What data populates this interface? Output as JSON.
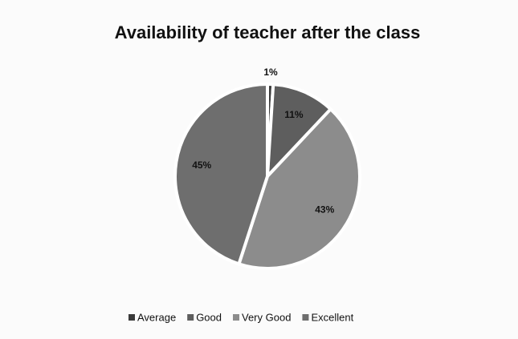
{
  "chart_data": {
    "type": "pie",
    "title": "Availability of teacher after the class",
    "categories": [
      "Average",
      "Good",
      "Very Good",
      "Excellent"
    ],
    "values": [
      1,
      11,
      43,
      45
    ],
    "value_labels": [
      "1%",
      "11%",
      "43%",
      "45%"
    ],
    "colors": [
      "#3a3a3a",
      "#5e5e5e",
      "#8c8c8c",
      "#6e6e6e"
    ],
    "legend": "bottom"
  }
}
